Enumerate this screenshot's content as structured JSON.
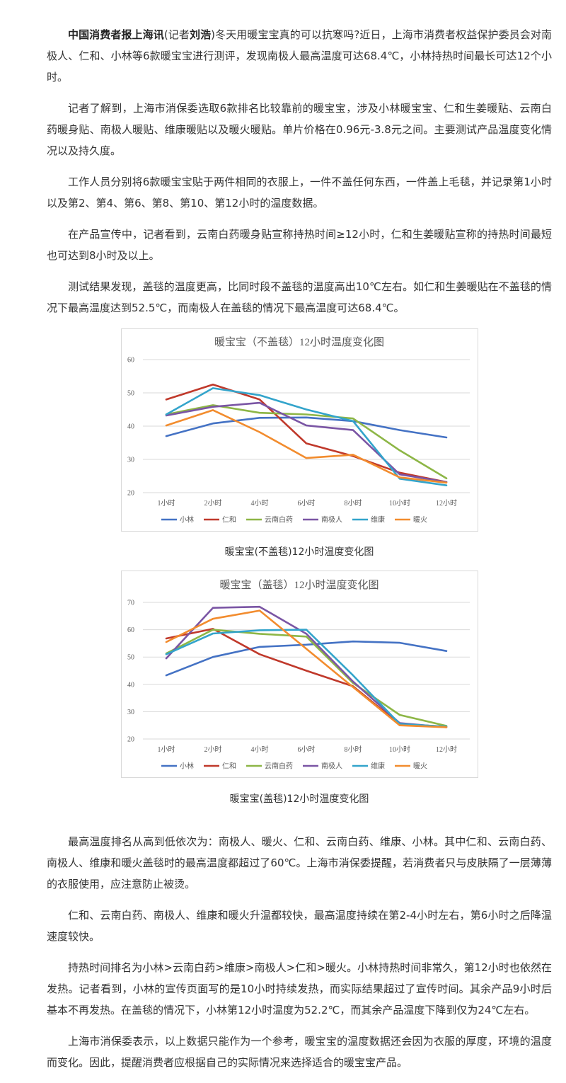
{
  "paragraphs_top": [
    {
      "lead": "中国消费者报上海讯",
      "text": "(记者",
      "name": "刘浩",
      "rest": ")冬天用暖宝宝真的可以抗寒吗?近日，上海市消费者权益保护委员会对南极人、仁和、小林等6款暖宝宝进行测评，发现南极人最高温度可达68.4℃，小林持热时间最长可达12个小时。"
    },
    {
      "text": "记者了解到，上海市消保委选取6款排名比较靠前的暖宝宝，涉及小林暖宝宝、仁和生姜暖贴、云南白药暖身贴、南极人暖贴、维康暖贴以及暖火暖贴。单片价格在0.96元-3.8元之间。主要测试产品温度变化情况以及持久度。"
    },
    {
      "text": "工作人员分别将6款暖宝宝贴于两件相同的衣服上，一件不盖任何东西，一件盖上毛毯，并记录第1小时以及第2、第4、第6、第8、第10、第12小时的温度数据。"
    },
    {
      "text": "在产品宣传中，记者看到，云南白药暖身贴宣称持热时间≥12小时，仁和生姜暖贴宣称的持热时间最短也可达到8小时及以上。"
    },
    {
      "text": "测试结果发现，盖毯的温度更高，比同时段不盖毯的温度高出10℃左右。如仁和生姜暖贴在不盖毯的情况下最高温度达到52.5℃，而南极人在盖毯的情况下最高温度可达68.4℃。"
    }
  ],
  "paragraphs_bottom": [
    {
      "text": "最高温度排名从高到低依次为：南极人、暖火、仁和、云南白药、维康、小林。其中仁和、云南白药、南极人、维康和暖火盖毯时的最高温度都超过了60℃。上海市消保委提醒，若消费者只与皮肤隔了一层薄薄的衣服使用，应注意防止被烫。"
    },
    {
      "text": "仁和、云南白药、南极人、维康和暖火升温都较快，最高温度持续在第2-4小时左右，第6小时之后降温速度较快。"
    },
    {
      "text": "持热时间排名为小林>云南白药>维康>南极人>仁和>暖火。小林持热时间非常久，第12小时也依然在发热。记者看到，小林的宣传页面写的是10小时持续发热，而实际结果超过了宣传时间。其余产品9小时后基本不再发热。在盖毯的情况下，小林第12小时温度为52.2℃，而其余产品温度下降到仅为24℃左右。"
    },
    {
      "text": "上海市消保委表示，以上数据只能作为一个参考，暖宝宝的温度数据还会因为衣服的厚度，环境的温度而变化。因此，提醒消费者应根据自己的实际情况来选择适合的暖宝宝产品。"
    }
  ],
  "captions": [
    "暖宝宝(不盖毯)12小时温度变化图",
    "暖宝宝(盖毯)12小时温度变化图"
  ],
  "chart_data": [
    {
      "type": "line",
      "title": "暖宝宝（不盖毯）12小时温度变化图",
      "categories": [
        "1小时",
        "2小时",
        "4小时",
        "6小时",
        "8小时",
        "10小时",
        "12小时"
      ],
      "ylim": [
        20,
        60
      ],
      "yticks": [
        20,
        30,
        40,
        50,
        60
      ],
      "grid": true,
      "legend": "bottom",
      "series": [
        {
          "name": "小林",
          "color": "#4472c4",
          "values": [
            37,
            40.8,
            42.5,
            42.6,
            41.5,
            38.8,
            36.6
          ]
        },
        {
          "name": "仁和",
          "color": "#c0392b",
          "values": [
            48,
            52.5,
            48,
            34.8,
            31,
            26,
            23.2
          ]
        },
        {
          "name": "云南白药",
          "color": "#8db646",
          "values": [
            43.5,
            46.3,
            44,
            43.5,
            42.3,
            32.7,
            24.3
          ]
        },
        {
          "name": "南极人",
          "color": "#7a55a4",
          "values": [
            43.2,
            45.8,
            47,
            40.2,
            38.8,
            25.5,
            23.2
          ]
        },
        {
          "name": "维康",
          "color": "#33a4cb",
          "values": [
            43.5,
            51.4,
            49.3,
            45,
            41.5,
            24.2,
            22.2
          ]
        },
        {
          "name": "暖火",
          "color": "#f28c2e",
          "values": [
            40.2,
            44.8,
            38.2,
            30.4,
            31.4,
            24.6,
            23
          ]
        }
      ]
    },
    {
      "type": "line",
      "title": "暖宝宝（盖毯）12小时温度变化图",
      "categories": [
        "1小时",
        "2小时",
        "4小时",
        "6小时",
        "8小时",
        "10小时",
        "12小时"
      ],
      "ylim": [
        20,
        70
      ],
      "yticks": [
        20,
        30,
        40,
        50,
        60,
        70
      ],
      "grid": true,
      "legend": "bottom",
      "series": [
        {
          "name": "小林",
          "color": "#4472c4",
          "values": [
            43.3,
            50,
            53.7,
            54.5,
            55.7,
            55.2,
            52.2
          ]
        },
        {
          "name": "仁和",
          "color": "#c0392b",
          "values": [
            56.8,
            60.3,
            51,
            45,
            39.3,
            25.4,
            24.5
          ]
        },
        {
          "name": "云南白药",
          "color": "#8db646",
          "values": [
            51.3,
            60,
            58.5,
            57.5,
            40.5,
            28.8,
            24.8
          ]
        },
        {
          "name": "南极人",
          "color": "#7a55a4",
          "values": [
            49.5,
            68,
            68.4,
            58.5,
            41,
            25.8,
            24.3
          ]
        },
        {
          "name": "维康",
          "color": "#33a4cb",
          "values": [
            51,
            58.6,
            59.8,
            60,
            43.3,
            25.5,
            24.5
          ]
        },
        {
          "name": "暖火",
          "color": "#f28c2e",
          "values": [
            55.5,
            64,
            67,
            53,
            39,
            25,
            24.3
          ]
        }
      ]
    }
  ]
}
